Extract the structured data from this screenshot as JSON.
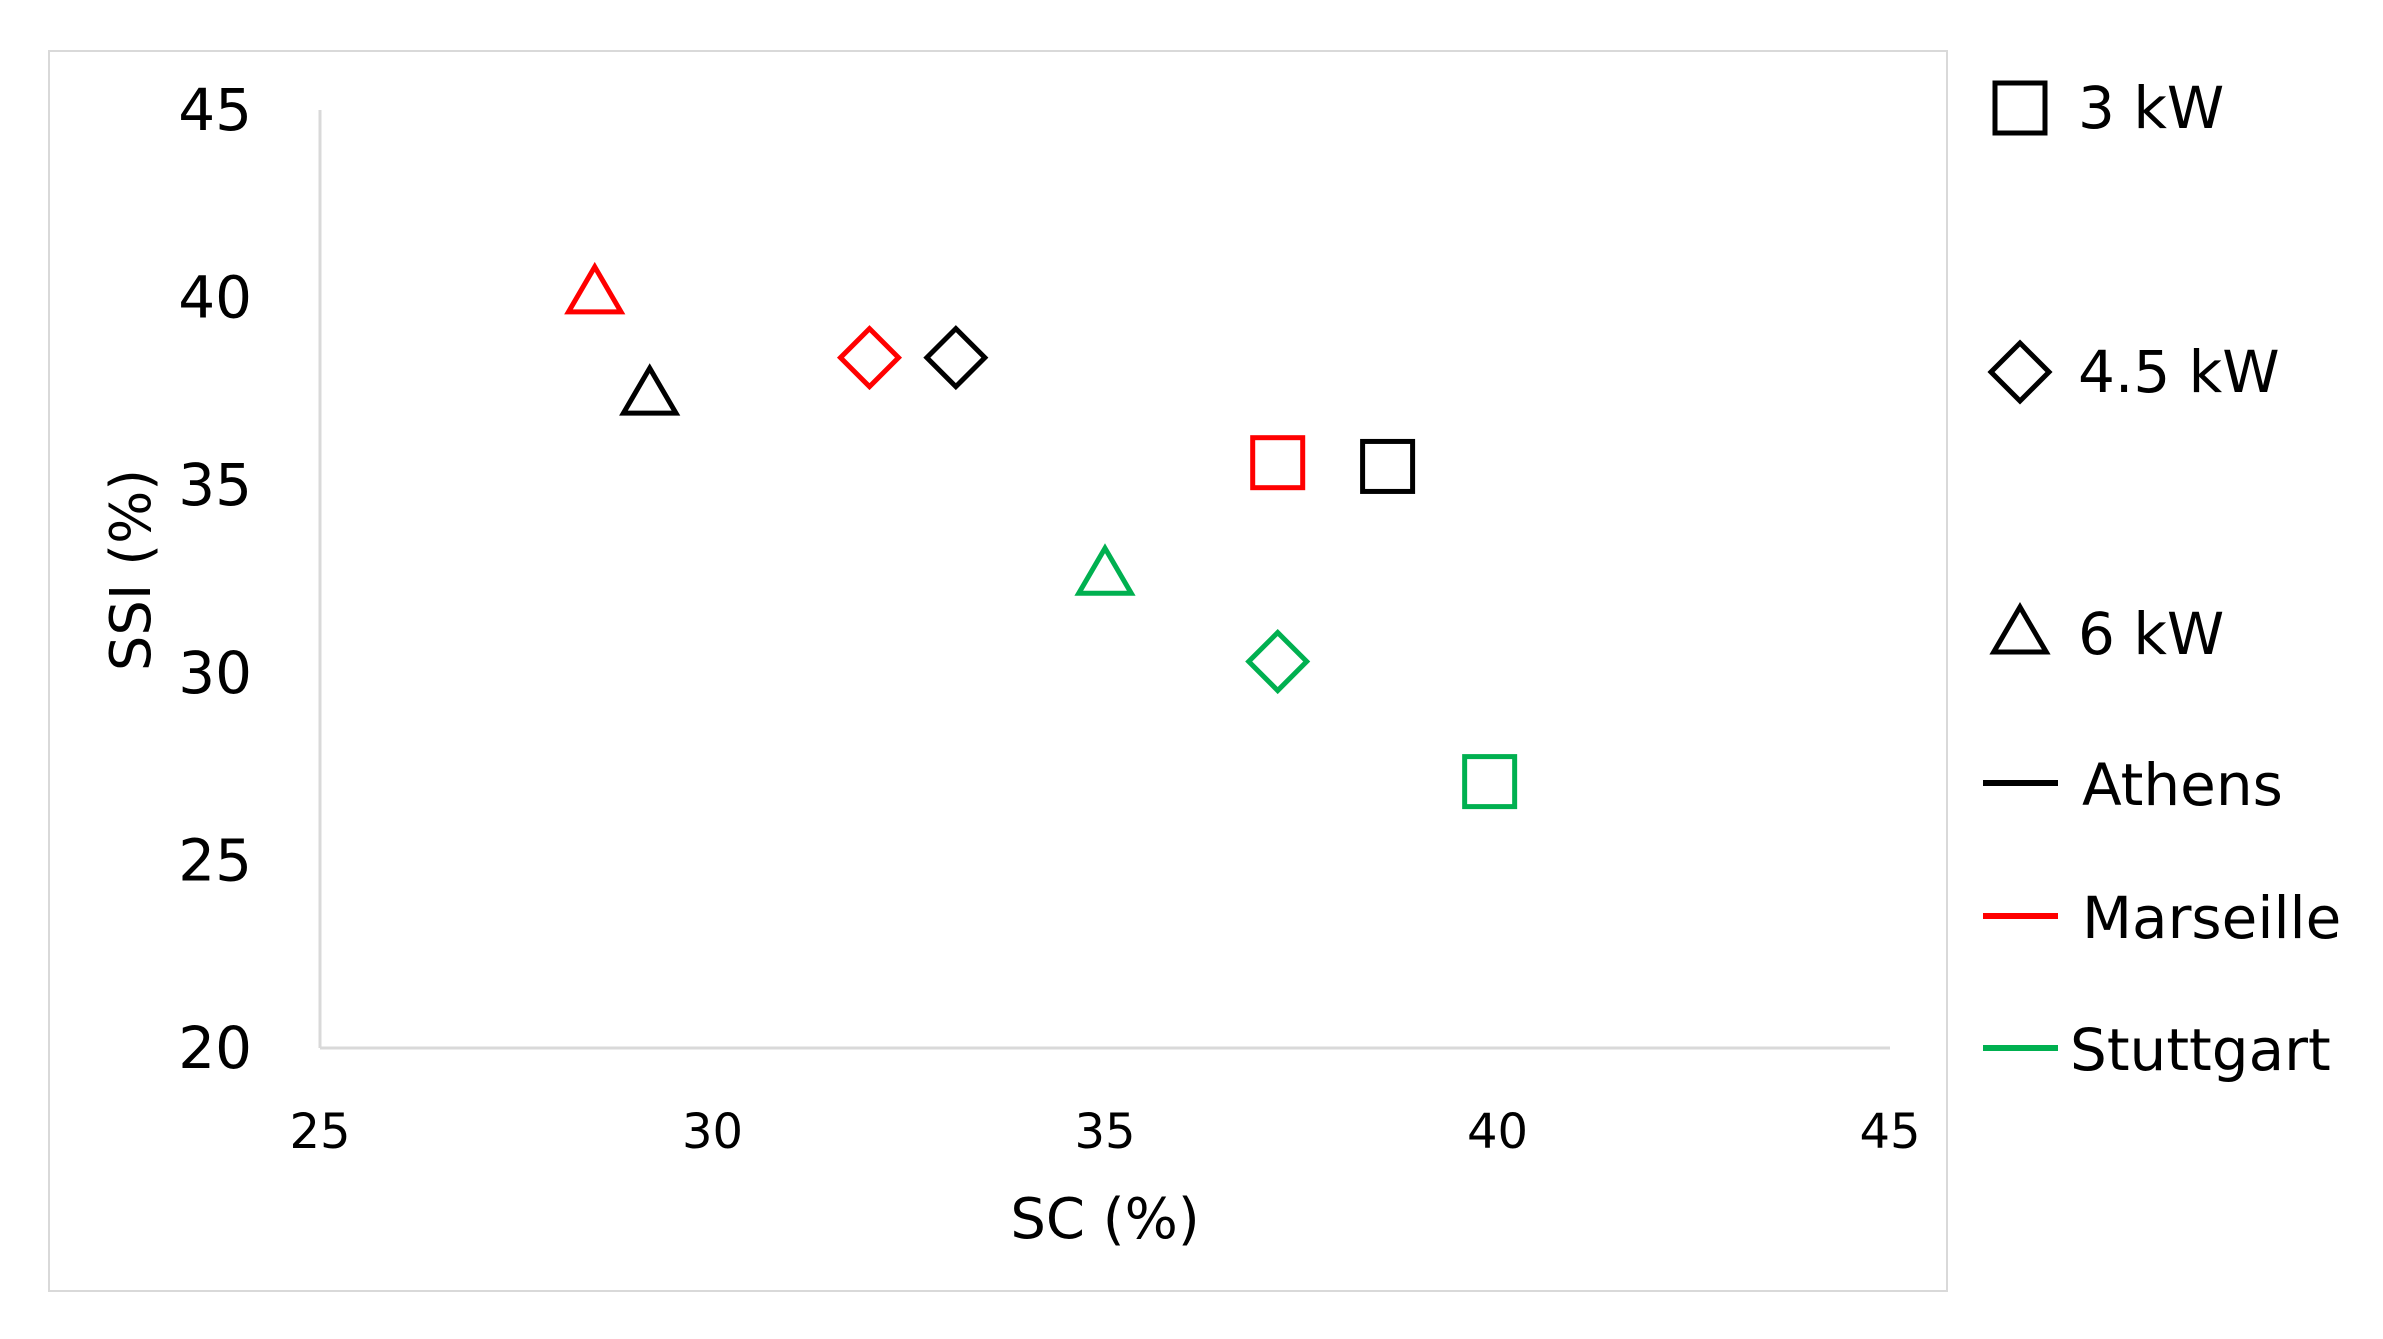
{
  "chart_data": {
    "type": "scatter",
    "title": "",
    "xlabel": "SC (%)",
    "ylabel": "SSI (%)",
    "xlim": [
      25,
      45
    ],
    "ylim": [
      20,
      45
    ],
    "x_ticks": [
      "25",
      "30",
      "35",
      "40",
      "45"
    ],
    "y_ticks": [
      "20",
      "25",
      "30",
      "35",
      "40",
      "45"
    ],
    "grid": false,
    "legend_position": "right",
    "colors": {
      "Athens": "#000000",
      "Marseille": "#ff0000",
      "Stuttgart": "#00b050"
    },
    "series": [
      {
        "name": "3 kW",
        "marker": "square",
        "points": [
          {
            "city": "Athens",
            "x": 38.6,
            "y": 35.5
          },
          {
            "city": "Marseille",
            "x": 37.2,
            "y": 35.6
          },
          {
            "city": "Stuttgart",
            "x": 39.9,
            "y": 27.1
          }
        ]
      },
      {
        "name": "4.5 kW",
        "marker": "diamond",
        "points": [
          {
            "city": "Athens",
            "x": 33.1,
            "y": 38.4
          },
          {
            "city": "Marseille",
            "x": 32.0,
            "y": 38.4
          },
          {
            "city": "Stuttgart",
            "x": 37.2,
            "y": 30.3
          }
        ]
      },
      {
        "name": "6 kW",
        "marker": "triangle",
        "points": [
          {
            "city": "Athens",
            "x": 29.2,
            "y": 37.4
          },
          {
            "city": "Marseille",
            "x": 28.5,
            "y": 40.1
          },
          {
            "city": "Stuttgart",
            "x": 35.0,
            "y": 32.6
          }
        ]
      }
    ],
    "legend": [
      {
        "label": "3 kW",
        "kind": "marker",
        "marker": "square"
      },
      {
        "label": "4.5 kW",
        "kind": "marker",
        "marker": "diamond"
      },
      {
        "label": "6 kW",
        "kind": "marker",
        "marker": "triangle"
      },
      {
        "label": "Athens",
        "kind": "line",
        "color": "#000000"
      },
      {
        "label": "Marseille",
        "kind": "line",
        "color": "#ff0000"
      },
      {
        "label": "Stuttgart",
        "kind": "line",
        "color": "#00b050"
      }
    ]
  }
}
